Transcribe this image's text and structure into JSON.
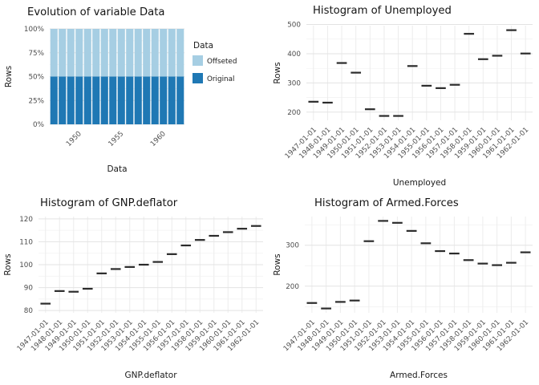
{
  "page": {
    "background": "#ffffff"
  },
  "colors": {
    "grid_major": "#e3e3e3",
    "grid_minor": "#f1f1f1",
    "grid_vertical": "#ececec",
    "tick_text": "#4d4d4d",
    "axis_title": "#1a1a1a",
    "chart_title": "#141414",
    "dash_mark": "#2b2b2b",
    "offseted_blue": "#a6cee3",
    "original_blue": "#1f78b4"
  },
  "dates": [
    "1947-01-01",
    "1948-01-01",
    "1949-01-01",
    "1950-01-01",
    "1951-01-01",
    "1952-01-01",
    "1953-01-01",
    "1954-01-01",
    "1955-01-01",
    "1956-01-01",
    "1957-01-01",
    "1958-01-01",
    "1959-01-01",
    "1960-01-01",
    "1961-01-01",
    "1962-01-01"
  ],
  "chart_data": [
    {
      "id": "evolution",
      "type": "bar",
      "stacked": true,
      "title": "Evolution of variable Data",
      "xlabel": "Data",
      "ylabel": "Rows",
      "ylim": [
        0,
        100
      ],
      "y_ticks": [
        {
          "v": 0,
          "label": "0%"
        },
        {
          "v": 25,
          "label": "25%"
        },
        {
          "v": 50,
          "label": "50%"
        },
        {
          "v": 75,
          "label": "75%"
        },
        {
          "v": 100,
          "label": "100%"
        }
      ],
      "minor_gridlines": [
        12.5,
        37.5,
        62.5,
        87.5
      ],
      "x_ticks": [
        {
          "i": 3,
          "label": "1950"
        },
        {
          "i": 8,
          "label": "1955"
        },
        {
          "i": 13,
          "label": "1960"
        }
      ],
      "stack": [
        {
          "name": "Original",
          "color": "#1f78b4",
          "percent": 50
        },
        {
          "name": "Offseted",
          "color": "#a6cee3",
          "percent": 50
        }
      ],
      "legend": {
        "title": "Data",
        "items": [
          {
            "label": "Offseted",
            "color": "#a6cee3"
          },
          {
            "label": "Original",
            "color": "#1f78b4"
          }
        ]
      }
    },
    {
      "id": "unemployed",
      "type": "boxplot",
      "title": "Histogram of Unemployed",
      "xlabel": "Unemployed",
      "ylabel": "Rows",
      "ylim": [
        172,
        496
      ],
      "y_ticks": [
        {
          "v": 200,
          "label": "200"
        },
        {
          "v": 300,
          "label": "300"
        },
        {
          "v": 400,
          "label": "400"
        },
        {
          "v": 500,
          "label": "500"
        }
      ],
      "minor_gridlines": [
        250,
        350,
        450
      ],
      "values": [
        235.6,
        232.5,
        368.2,
        335.1,
        209.9,
        187,
        187,
        357.8,
        290.4,
        282.2,
        293.6,
        468.1,
        381.3,
        393.1,
        480.6,
        400.7
      ]
    },
    {
      "id": "gnp",
      "type": "boxplot",
      "title": "Histogram of GNP.deflator",
      "xlabel": "GNP.deflator",
      "ylabel": "Rows",
      "ylim": [
        79,
        121
      ],
      "y_ticks": [
        {
          "v": 80,
          "label": "80"
        },
        {
          "v": 90,
          "label": "90"
        },
        {
          "v": 100,
          "label": "100"
        },
        {
          "v": 110,
          "label": "110"
        },
        {
          "v": 120,
          "label": "120"
        }
      ],
      "minor_gridlines": [
        85,
        95,
        105,
        115
      ],
      "values": [
        83,
        88.5,
        88.2,
        89.5,
        96.2,
        98.1,
        99,
        100,
        101.2,
        104.6,
        108.4,
        110.8,
        112.6,
        114.2,
        115.7,
        116.9
      ]
    },
    {
      "id": "armed",
      "type": "boxplot",
      "title": "Histogram of Armed.Forces",
      "xlabel": "Armed.Forces",
      "ylabel": "Rows",
      "ylim": [
        135,
        370
      ],
      "y_ticks": [
        {
          "v": 200,
          "label": "200"
        },
        {
          "v": 300,
          "label": "300"
        }
      ],
      "minor_gridlines": [
        150,
        250,
        350
      ],
      "values": [
        159,
        145.6,
        161.6,
        165,
        309.9,
        359.4,
        354.7,
        335,
        304.8,
        285.7,
        279.8,
        263.7,
        255.2,
        251.4,
        257.2,
        282.7
      ]
    }
  ]
}
